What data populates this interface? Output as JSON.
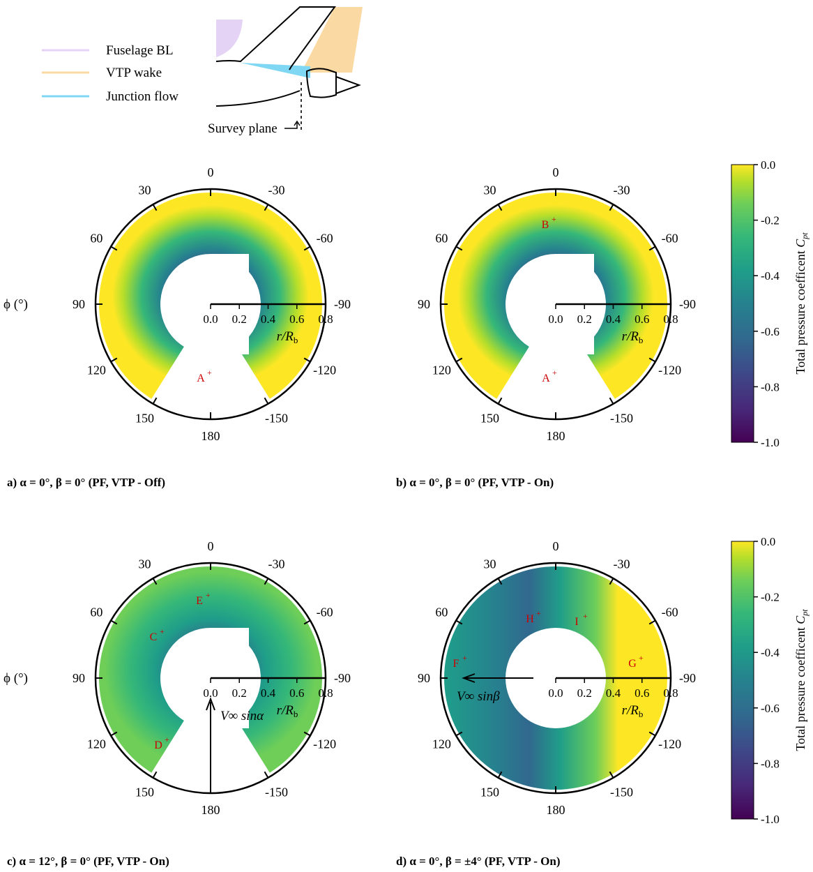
{
  "legend": {
    "items": [
      {
        "label": "Fuselage BL",
        "color": "#e4d3f5"
      },
      {
        "label": "VTP wake",
        "color": "#fbd9a3"
      },
      {
        "label": "Junction flow",
        "color": "#7fd7f4"
      }
    ],
    "survey_plane": "Survey plane"
  },
  "polar": {
    "phi_label": "ϕ (°)",
    "angle_labels": [
      "0",
      "-30",
      "-60",
      "-90",
      "-120",
      "-150",
      "180",
      "150",
      "120",
      "90",
      "60",
      "30"
    ],
    "r_ticks": [
      "0.0",
      "0.2",
      "0.4",
      "0.6",
      "0.8"
    ],
    "r_label": "r/R",
    "r_label_sub": "b"
  },
  "colorbar": {
    "title": "Total pressure coefficent",
    "symbol": "C",
    "symbol_sub": "pt",
    "ticks": [
      "0.0",
      "-0.2",
      "-0.4",
      "-0.6",
      "-0.8",
      "-1.0"
    ],
    "range": [
      -1.0,
      0.0
    ],
    "colors": [
      "#440154",
      "#482878",
      "#3e4989",
      "#31688e",
      "#26828e",
      "#1f9e89",
      "#35b779",
      "#6ece58",
      "#b5de2b",
      "#fde725"
    ]
  },
  "panels": [
    {
      "caption": "a) α = 0°, β = 0° (PF, VTP - Off)",
      "points": [
        "A"
      ]
    },
    {
      "caption": "b) α = 0°, β = 0° (PF, VTP - On)",
      "points": [
        "A",
        "B"
      ]
    },
    {
      "caption": "c) α = 12°, β = 0° (PF, VTP - On)",
      "points": [
        "C",
        "D",
        "E"
      ],
      "arrow": "V∞ sinα"
    },
    {
      "caption": "d) α = 0°, β = ±4° (PF, VTP - On)",
      "points": [
        "F",
        "G",
        "H",
        "I"
      ],
      "arrow": "V∞ sinβ"
    }
  ]
}
